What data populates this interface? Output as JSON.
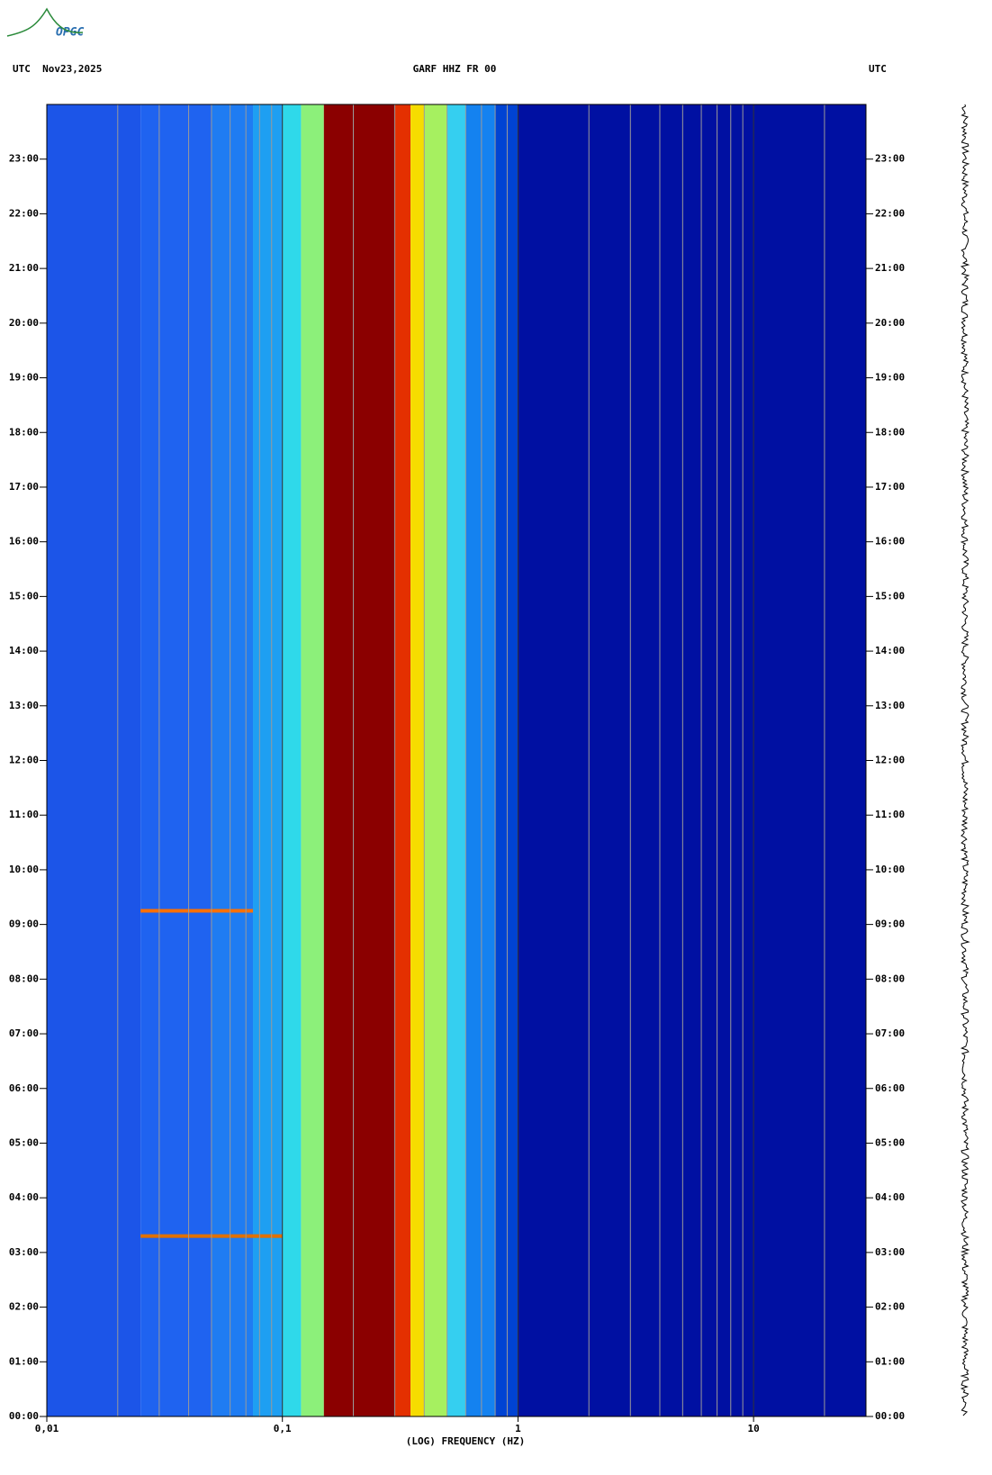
{
  "chart_data": {
    "type": "spectrogram",
    "logo": "OPGC",
    "left_header": "UTC  Nov23,2025",
    "title": "GARF HHZ FR 00",
    "right_header": "UTC",
    "xlabel": "(LOG) FREQUENCY (HZ)",
    "xscale": "log",
    "xlim": [
      0.01,
      30
    ],
    "xticks": [
      {
        "value": 0.01,
        "label": "0,01"
      },
      {
        "value": 0.1,
        "label": "0,1"
      },
      1,
      10
    ],
    "xminor": [
      0.02,
      0.03,
      0.04,
      0.05,
      0.06,
      0.07,
      0.08,
      0.09,
      0.2,
      0.3,
      0.4,
      0.5,
      0.6,
      0.7,
      0.8,
      0.9,
      2,
      3,
      4,
      5,
      6,
      7,
      8,
      9,
      20
    ],
    "grid": true,
    "ylim": [
      0,
      24
    ],
    "yticks": [
      {
        "value": 0,
        "label": "00:00"
      },
      {
        "value": 1,
        "label": "01:00"
      },
      {
        "value": 2,
        "label": "02:00"
      },
      {
        "value": 3,
        "label": "03:00"
      },
      {
        "value": 4,
        "label": "04:00"
      },
      {
        "value": 5,
        "label": "05:00"
      },
      {
        "value": 6,
        "label": "06:00"
      },
      {
        "value": 7,
        "label": "07:00"
      },
      {
        "value": 8,
        "label": "08:00"
      },
      {
        "value": 9,
        "label": "09:00"
      },
      {
        "value": 10,
        "label": "10:00"
      },
      {
        "value": 11,
        "label": "11:00"
      },
      {
        "value": 12,
        "label": "12:00"
      },
      {
        "value": 13,
        "label": "13:00"
      },
      {
        "value": 14,
        "label": "14:00"
      },
      {
        "value": 15,
        "label": "15:00"
      },
      {
        "value": 16,
        "label": "16:00"
      },
      {
        "value": 17,
        "label": "17:00"
      },
      {
        "value": 18,
        "label": "18:00"
      },
      {
        "value": 19,
        "label": "19:00"
      },
      {
        "value": 20,
        "label": "20:00"
      },
      {
        "value": 21,
        "label": "21:00"
      },
      {
        "value": 22,
        "label": "22:00"
      },
      {
        "value": 23,
        "label": "23:00"
      }
    ],
    "bands": {
      "edges": [
        0.01,
        0.025,
        0.05,
        0.075,
        0.1,
        0.12,
        0.15,
        0.3,
        0.35,
        0.4,
        0.5,
        0.6,
        0.8,
        1,
        30
      ],
      "colors": [
        "#1c55e8",
        "#1f63f0",
        "#1f7cf2",
        "#1e9ff2",
        "#2fd9ea",
        "#8cf07a",
        "#8b0000",
        "#e43000",
        "#f6dc00",
        "#a6f060",
        "#35cff0",
        "#1482f0",
        "#0043d3",
        "#0010a2"
      ]
    },
    "events": [
      {
        "time": 9.25,
        "fmin": 0.025,
        "fmax": 0.075,
        "color": "#ff7000"
      },
      {
        "time": 3.3,
        "fmin": 0.025,
        "fmax": 0.1,
        "color": "#e07000"
      }
    ]
  }
}
